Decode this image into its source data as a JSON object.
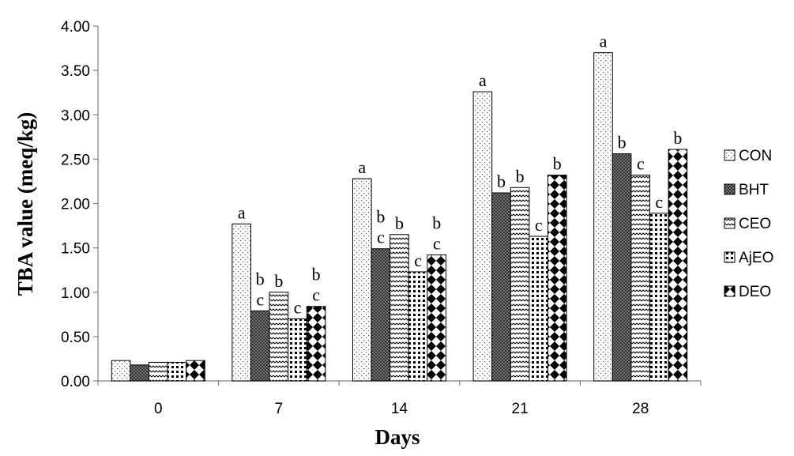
{
  "chart_data": {
    "type": "bar",
    "xlabel": "Days",
    "ylabel": "TBA value (meq/kg)",
    "ylim": [
      0,
      4
    ],
    "yticks": [
      "0.00",
      "0.50",
      "1.00",
      "1.50",
      "2.00",
      "2.50",
      "3.00",
      "3.50",
      "4.00"
    ],
    "categories": [
      "0",
      "7",
      "14",
      "21",
      "28"
    ],
    "legend_position": "right",
    "grid": false,
    "series": [
      {
        "name": "CON",
        "pattern": "dots",
        "values": [
          0.23,
          1.77,
          2.28,
          3.26,
          3.7
        ],
        "letters": [
          "",
          "a",
          "a",
          "a",
          "a"
        ]
      },
      {
        "name": "BHT",
        "pattern": "crosshatch",
        "values": [
          0.18,
          0.79,
          1.49,
          2.12,
          2.56
        ],
        "letters": [
          "",
          "c",
          "c",
          "b",
          "b"
        ]
      },
      {
        "name": "CEO",
        "pattern": "zigzag",
        "values": [
          0.21,
          1.0,
          1.65,
          2.18,
          2.32
        ],
        "letters": [
          "",
          "b",
          "b",
          "b",
          "c"
        ]
      },
      {
        "name": "AjEO",
        "pattern": "squares",
        "values": [
          0.21,
          0.7,
          1.23,
          1.63,
          1.89
        ],
        "letters": [
          "",
          "c",
          "c",
          "c",
          "c"
        ]
      },
      {
        "name": "DEO",
        "pattern": "diamonds",
        "values": [
          0.23,
          0.84,
          1.42,
          2.32,
          2.61
        ],
        "letters": [
          "",
          "c",
          "c",
          "b",
          "b"
        ]
      }
    ],
    "extra_labels": [
      {
        "category": 1,
        "series": 1,
        "text": "b"
      },
      {
        "category": 1,
        "series": 4,
        "text": "b"
      },
      {
        "category": 2,
        "series": 1,
        "text": "b"
      },
      {
        "category": 2,
        "series": 4,
        "text": "b"
      }
    ]
  }
}
